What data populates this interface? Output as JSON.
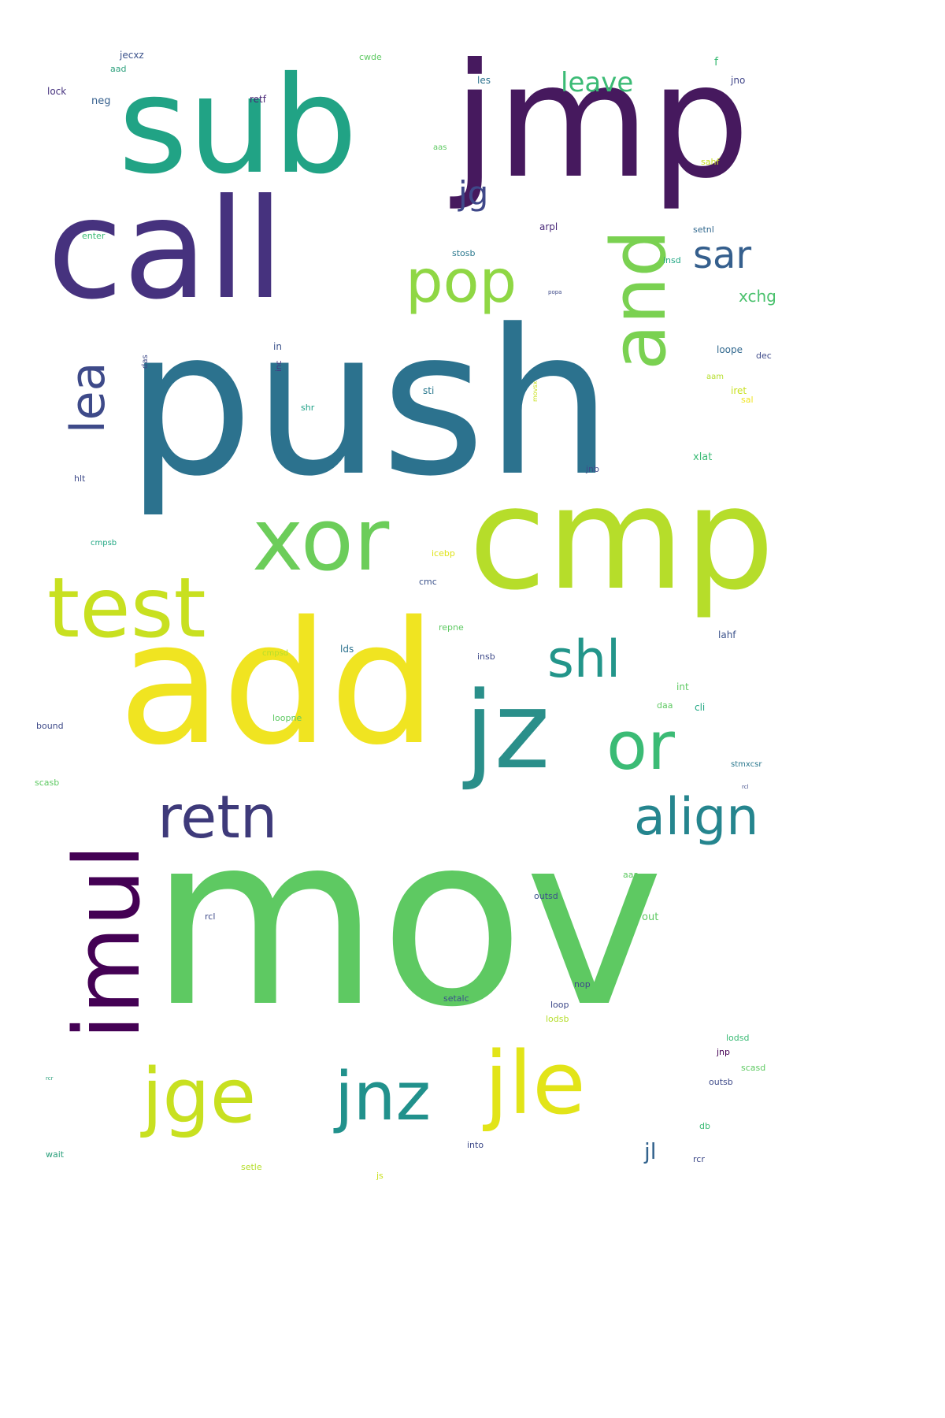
{
  "palette": {
    "purple": "#440154",
    "indigo": "#46327e",
    "blue": "#365c8d",
    "teal_blue": "#2c728e",
    "teal": "#21918c",
    "sea_green": "#1fa187",
    "green": "#3bbb75",
    "light_green": "#5ec962",
    "lime": "#9bd93c",
    "yellow_green": "#c8e020",
    "yellow": "#f0e421"
  },
  "words": [
    {
      "text": "mov",
      "color": "#5ec962"
    },
    {
      "text": "push",
      "color": "#2c728e"
    },
    {
      "text": "add",
      "color": "#f0e421"
    },
    {
      "text": "jmp",
      "color": "#46195e"
    },
    {
      "text": "call",
      "color": "#46327e"
    },
    {
      "text": "sub",
      "color": "#21a385"
    },
    {
      "text": "cmp",
      "color": "#b6dd2a"
    },
    {
      "text": "jz",
      "color": "#2a8f8a"
    },
    {
      "text": "xor",
      "color": "#6ccd5a"
    },
    {
      "text": "test",
      "color": "#c8e020"
    },
    {
      "text": "imul",
      "color": "#440154"
    },
    {
      "text": "jle",
      "color": "#e2e418"
    },
    {
      "text": "jge",
      "color": "#c8e020"
    },
    {
      "text": "jnz",
      "color": "#21918c"
    },
    {
      "text": "and",
      "color": "#7ad151"
    },
    {
      "text": "or",
      "color": "#3bbb75"
    },
    {
      "text": "pop",
      "color": "#8fd744"
    },
    {
      "text": "retn",
      "color": "#3e3a7a"
    },
    {
      "text": "shl",
      "color": "#23958a"
    },
    {
      "text": "align",
      "color": "#25858e"
    },
    {
      "text": "lea",
      "color": "#3e4a89"
    },
    {
      "text": "sar",
      "color": "#355f8d"
    },
    {
      "text": "jg",
      "color": "#3f4889"
    },
    {
      "text": "leave",
      "color": "#3bbb75"
    },
    {
      "text": "jl",
      "color": "#33638d"
    },
    {
      "text": "xchg",
      "color": "#4ac16d"
    },
    {
      "text": "jecxz",
      "color": "#3b528b"
    },
    {
      "text": "aad",
      "color": "#2ca07c"
    },
    {
      "text": "lock",
      "color": "#46327e"
    },
    {
      "text": "neg",
      "color": "#355f8d"
    },
    {
      "text": "retf",
      "color": "#482475"
    },
    {
      "text": "les",
      "color": "#2c728e"
    },
    {
      "text": "cwde",
      "color": "#5ec962"
    },
    {
      "text": "jno",
      "color": "#404588"
    },
    {
      "text": "sahf",
      "color": "#c8e020"
    },
    {
      "text": "aas",
      "color": "#5ec962"
    },
    {
      "text": "enter",
      "color": "#3bbb75"
    },
    {
      "text": "arpl",
      "color": "#482878"
    },
    {
      "text": "setnl",
      "color": "#31688e"
    },
    {
      "text": "stosb",
      "color": "#2a788e"
    },
    {
      "text": "insd",
      "color": "#22a884"
    },
    {
      "text": "popa",
      "color": "#3e4a89"
    },
    {
      "text": "in",
      "color": "#3b528b"
    },
    {
      "text": "inc",
      "color": "#46327e"
    },
    {
      "text": "loope",
      "color": "#31688e"
    },
    {
      "text": "dec",
      "color": "#3e4a89"
    },
    {
      "text": "aam",
      "color": "#b5de2b"
    },
    {
      "text": "iret",
      "color": "#c8e020"
    },
    {
      "text": "sal",
      "color": "#f0e421"
    },
    {
      "text": "sti",
      "color": "#2a788e"
    },
    {
      "text": "shr",
      "color": "#1fa187"
    },
    {
      "text": "xlat",
      "color": "#3bbb75"
    },
    {
      "text": "jnb",
      "color": "#3e4a89"
    },
    {
      "text": "hlt",
      "color": "#3e4a89"
    },
    {
      "text": "cmpsb",
      "color": "#22a884"
    },
    {
      "text": "icebp",
      "color": "#dfe318"
    },
    {
      "text": "cmc",
      "color": "#3b528b"
    },
    {
      "text": "repne",
      "color": "#5ec962"
    },
    {
      "text": "lahf",
      "color": "#3b528b"
    },
    {
      "text": "cmpsd",
      "color": "#b5de2b"
    },
    {
      "text": "lds",
      "color": "#2c728e"
    },
    {
      "text": "insb",
      "color": "#3e4a89"
    },
    {
      "text": "int",
      "color": "#5ec962"
    },
    {
      "text": "bound",
      "color": "#3e4a89"
    },
    {
      "text": "loopne",
      "color": "#5ec962"
    },
    {
      "text": "daa",
      "color": "#5ec962"
    },
    {
      "text": "cli",
      "color": "#22a884"
    },
    {
      "text": "scasb",
      "color": "#5ec962"
    },
    {
      "text": "stmxcsr",
      "color": "#2a788e"
    },
    {
      "text": "rcl",
      "color": "#3e4a89"
    },
    {
      "text": "aaa",
      "color": "#5ec962"
    },
    {
      "text": "outsd",
      "color": "#3b528b"
    },
    {
      "text": "out",
      "color": "#5ec962"
    },
    {
      "text": "nop",
      "color": "#3e4a89"
    },
    {
      "text": "loop",
      "color": "#3e4a89"
    },
    {
      "text": "setalc",
      "color": "#3b528b"
    },
    {
      "text": "lodsb",
      "color": "#b5de2b"
    },
    {
      "text": "lodsd",
      "color": "#3bbb75"
    },
    {
      "text": "jnp",
      "color": "#440154"
    },
    {
      "text": "scasd",
      "color": "#5ec962"
    },
    {
      "text": "outsb",
      "color": "#3e4a89"
    },
    {
      "text": "db",
      "color": "#3bbb75"
    },
    {
      "text": "into",
      "color": "#3e4a89"
    },
    {
      "text": "wait",
      "color": "#2ca07c"
    },
    {
      "text": "setle",
      "color": "#b5de2b"
    },
    {
      "text": "js",
      "color": "#c8e020"
    },
    {
      "text": "rcr",
      "color": "#3e4a89"
    },
    {
      "text": "das",
      "color": "#3e4a89"
    },
    {
      "text": "movsx",
      "color": "#c8e020"
    },
    {
      "text": "f",
      "color": "#3bbb75"
    },
    {
      "text": "rcr",
      "color": "#2ca07c"
    }
  ]
}
